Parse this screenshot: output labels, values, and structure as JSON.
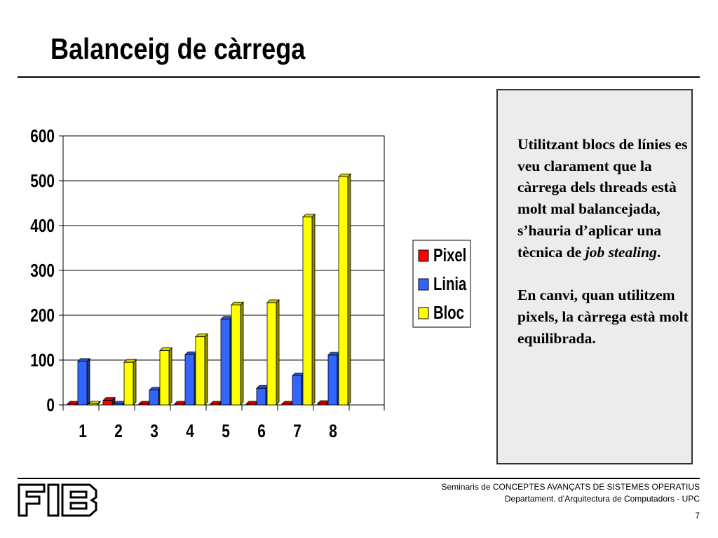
{
  "slide": {
    "title": "Balanceig de càrrega"
  },
  "chart_data": {
    "type": "bar",
    "categories": [
      "1",
      "2",
      "3",
      "4",
      "5",
      "6",
      "7",
      "8"
    ],
    "series": [
      {
        "name": "Pixel",
        "color": "#ff0000",
        "values": [
          2,
          10,
          2,
          2,
          2,
          2,
          2,
          3
        ]
      },
      {
        "name": "Linia",
        "color": "#3366ff",
        "values": [
          97,
          2,
          33,
          112,
          191,
          37,
          65,
          111
        ]
      },
      {
        "name": "Bloc",
        "color": "#ffff00",
        "values": [
          2,
          95,
          121,
          152,
          223,
          228,
          419,
          509
        ]
      }
    ],
    "yticks": [
      "0",
      "100",
      "200",
      "300",
      "400",
      "500",
      "600"
    ],
    "ylim": [
      0,
      600
    ],
    "grid": true,
    "legend": "right",
    "style": "3d-columns"
  },
  "note": {
    "paragraph1_before": "Utilitzant blocs de línies es veu clarament que la càrrega dels threads està molt mal balancejada, s’hauria d’aplicar una tècnica de ",
    "paragraph1_em": "job stealing",
    "paragraph1_after": ".",
    "paragraph2": "En canvi, quan utilitzem pixels, la càrrega està molt equilibrada."
  },
  "footer": {
    "line1": "Seminaris de CONCEPTES AVANÇATS DE SISTEMES OPERATIUS",
    "line2": "Departament.  d’Arquitectura de Computadors - UPC",
    "page_number": "7",
    "logo_text": "FIB"
  }
}
